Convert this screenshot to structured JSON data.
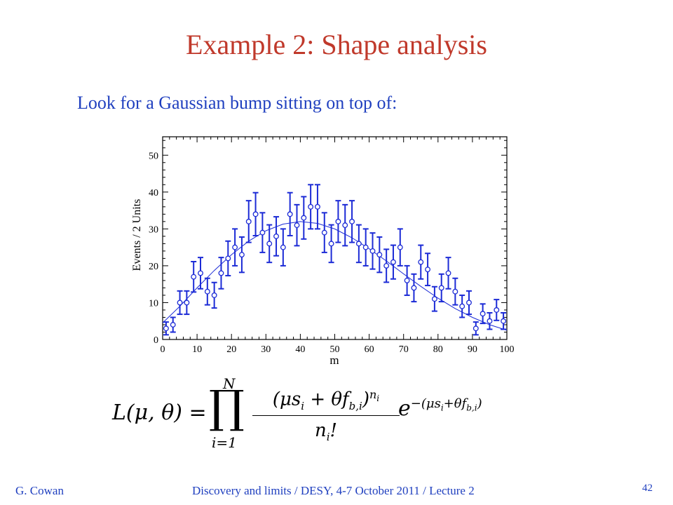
{
  "slide": {
    "title": "Example 2:  Shape analysis",
    "subtitle": "Look for a Gaussian bump sitting on top of:",
    "formula": {
      "lhs": "L(μ, θ) =",
      "product_symbol": "∏",
      "upper_limit": "N",
      "lower_limit": "i=1",
      "numerator": "(μs",
      "numerator_rest": " + θf",
      "numerator_sub": "b,i",
      "numerator_close": ")",
      "numerator_power": "n",
      "power_sub": "i",
      "denominator": "n",
      "denominator_sub": "i",
      "denominator_end": "!",
      "exp_base": "e",
      "exp_power": "−(μs + θf)",
      "exp_sub_i": "i",
      "exp_sub_bi": "b,i"
    },
    "footer_left": "G. Cowan",
    "footer_center": "Discovery and limits / DESY, 4-7 October 2011 / Lecture 2",
    "page_number": "42"
  },
  "colors": {
    "title": "#c0392b",
    "text_blue": "#1f3fbf",
    "data_blue": "#1c2bd6"
  },
  "chart_data": {
    "type": "scatter",
    "xlabel": "m",
    "ylabel": "Events / 2 Units",
    "xlim": [
      0,
      100
    ],
    "ylim": [
      0,
      55
    ],
    "xticks": [
      0,
      10,
      20,
      30,
      40,
      50,
      60,
      70,
      80,
      90,
      100
    ],
    "yticks": [
      0,
      10,
      20,
      30,
      40,
      50
    ],
    "x": [
      1,
      3,
      5,
      7,
      9,
      11,
      13,
      15,
      17,
      19,
      21,
      23,
      25,
      27,
      29,
      31,
      33,
      35,
      37,
      39,
      41,
      43,
      45,
      47,
      49,
      51,
      53,
      55,
      57,
      59,
      61,
      63,
      65,
      67,
      69,
      71,
      73,
      75,
      77,
      79,
      81,
      83,
      85,
      87,
      89,
      91,
      93,
      95,
      97,
      99
    ],
    "y": [
      3,
      4,
      10,
      10,
      17,
      18,
      13,
      12,
      18,
      22,
      25,
      23,
      32,
      34,
      29,
      26,
      28,
      25,
      34,
      31,
      33,
      36,
      36,
      29,
      26,
      32,
      31,
      32,
      26,
      25,
      24,
      23,
      20,
      21,
      25,
      16,
      14,
      21,
      19,
      11,
      14,
      18,
      13,
      9,
      10,
      3,
      7,
      5,
      8,
      5
    ],
    "fit_curve": {
      "x": [
        0,
        5,
        10,
        15,
        20,
        25,
        30,
        35,
        40,
        45,
        50,
        55,
        60,
        65,
        70,
        75,
        80,
        85,
        90,
        95,
        100
      ],
      "y": [
        4.5,
        9,
        14,
        18.7,
        23,
        26.7,
        29.5,
        31.3,
        32,
        31.5,
        30,
        27.6,
        24.6,
        21.3,
        17.8,
        14.4,
        11.2,
        8.4,
        6,
        4,
        2.5
      ]
    },
    "grid": false,
    "legend": "none"
  }
}
